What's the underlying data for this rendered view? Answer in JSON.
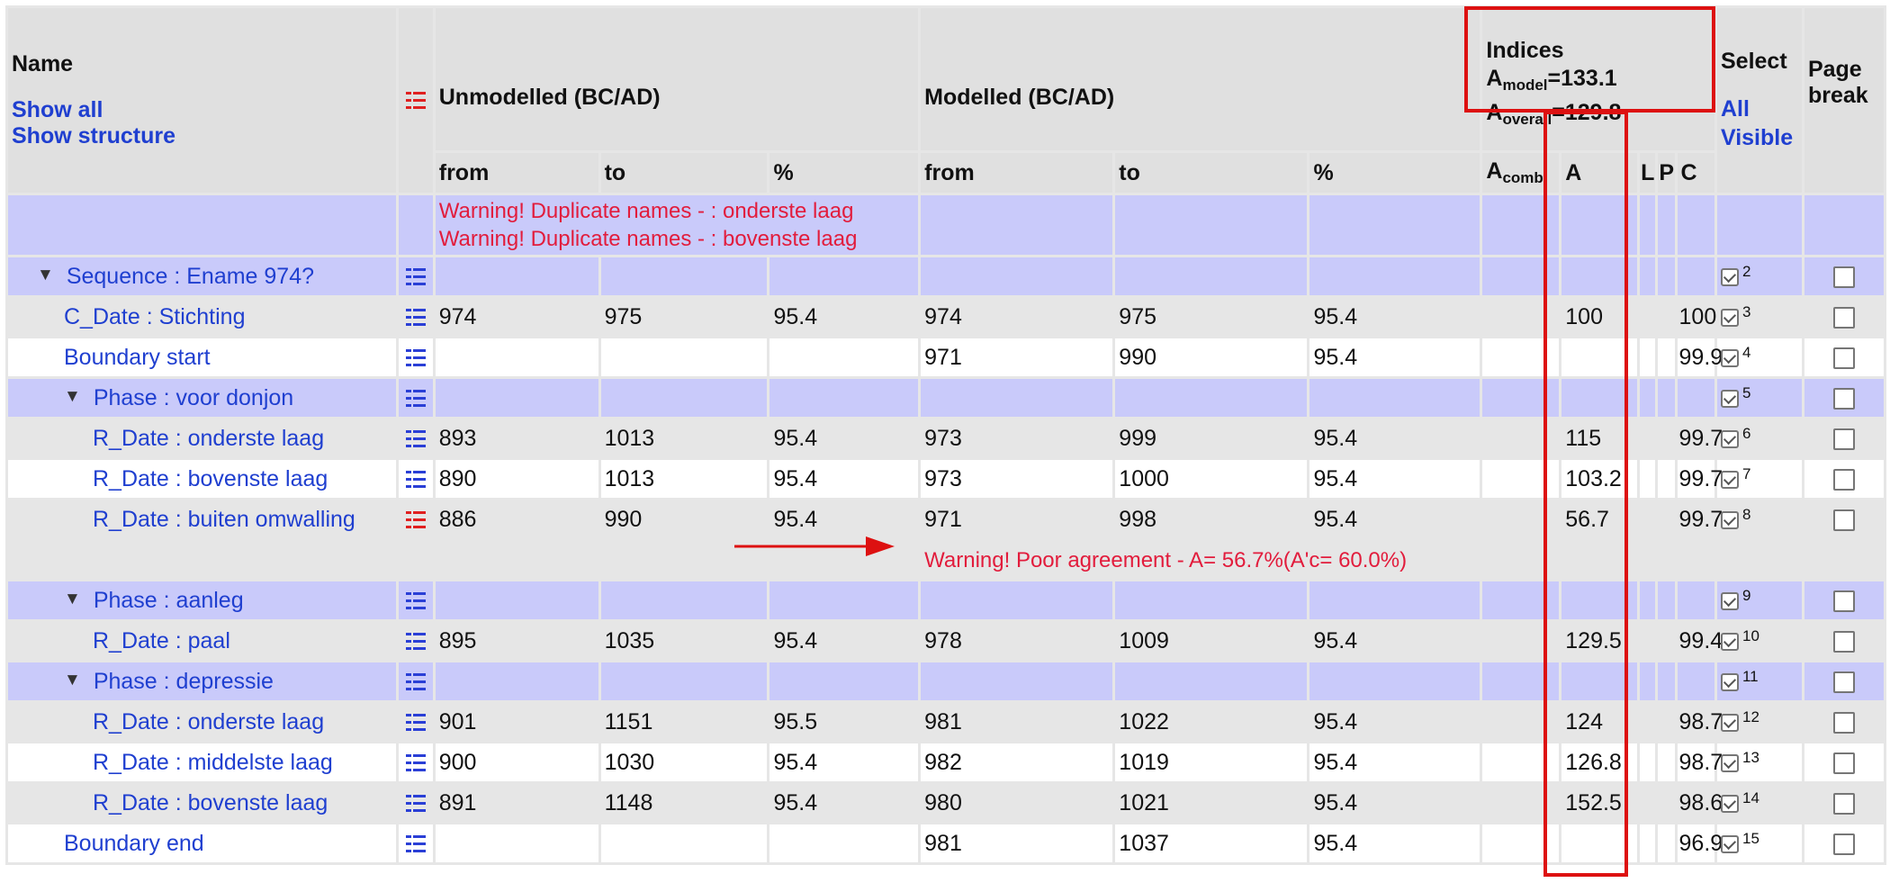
{
  "header": {
    "name": "Name",
    "show_all": "Show all",
    "show_structure": "Show structure",
    "unmodelled": "Unmodelled (BC/AD)",
    "modelled": "Modelled (BC/AD)",
    "indices": "Indices",
    "amodel_a": "A",
    "amodel_sub": "model",
    "amodel_val": "=133.1",
    "aoverall_a": "A",
    "aoverall_sub": "overall",
    "aoverall_val": "=129.8",
    "select": "Select",
    "all_visible": "All Visible",
    "page_break": "Page break",
    "from": "from",
    "to": "to",
    "pct": "%",
    "acomb_a": "A",
    "acomb_sub": "comb",
    "col_a": "A",
    "col_l": "L",
    "col_p": "P",
    "col_c": "C"
  },
  "warnings_top": [
    "Warning! Duplicate names - : onderste laag",
    "Warning! Duplicate names - : bovenste laag"
  ],
  "rows": [
    {
      "name": "Sequence : Ename 974?",
      "u_from": "",
      "u_to": "",
      "u_pct": "",
      "m_from": "",
      "m_to": "",
      "m_pct": "",
      "a": "",
      "c": "",
      "sel": "2"
    },
    {
      "name": "C_Date : Stichting",
      "u_from": "974",
      "u_to": "975",
      "u_pct": "95.4",
      "m_from": "974",
      "m_to": "975",
      "m_pct": "95.4",
      "a": "100",
      "c": "100",
      "sel": "3"
    },
    {
      "name": "Boundary start",
      "u_from": "",
      "u_to": "",
      "u_pct": "",
      "m_from": "971",
      "m_to": "990",
      "m_pct": "95.4",
      "a": "",
      "c": "99.9",
      "sel": "4"
    },
    {
      "name": "Phase : voor donjon",
      "u_from": "",
      "u_to": "",
      "u_pct": "",
      "m_from": "",
      "m_to": "",
      "m_pct": "",
      "a": "",
      "c": "",
      "sel": "5"
    },
    {
      "name": "R_Date : onderste laag",
      "u_from": "893",
      "u_to": "1013",
      "u_pct": "95.4",
      "m_from": "973",
      "m_to": "999",
      "m_pct": "95.4",
      "a": "115",
      "c": "99.7",
      "sel": "6"
    },
    {
      "name": "R_Date : bovenste laag",
      "u_from": "890",
      "u_to": "1013",
      "u_pct": "95.4",
      "m_from": "973",
      "m_to": "1000",
      "m_pct": "95.4",
      "a": "103.2",
      "c": "99.7",
      "sel": "7"
    },
    {
      "name": "R_Date : buiten omwalling",
      "u_from": "886",
      "u_to": "990",
      "u_pct": "95.4",
      "m_from": "971",
      "m_to": "998",
      "m_pct": "95.4",
      "a": "56.7",
      "c": "99.7",
      "sel": "8"
    },
    {
      "warning": "Warning! Poor agreement - A= 56.7%(A'c= 60.0%)"
    },
    {
      "name": "Phase : aanleg",
      "u_from": "",
      "u_to": "",
      "u_pct": "",
      "m_from": "",
      "m_to": "",
      "m_pct": "",
      "a": "",
      "c": "",
      "sel": "9"
    },
    {
      "name": "R_Date : paal",
      "u_from": "895",
      "u_to": "1035",
      "u_pct": "95.4",
      "m_from": "978",
      "m_to": "1009",
      "m_pct": "95.4",
      "a": "129.5",
      "c": "99.4",
      "sel": "10"
    },
    {
      "name": "Phase : depressie",
      "u_from": "",
      "u_to": "",
      "u_pct": "",
      "m_from": "",
      "m_to": "",
      "m_pct": "",
      "a": "",
      "c": "",
      "sel": "11"
    },
    {
      "name": "R_Date : onderste laag",
      "u_from": "901",
      "u_to": "1151",
      "u_pct": "95.5",
      "m_from": "981",
      "m_to": "1022",
      "m_pct": "95.4",
      "a": "124",
      "c": "98.7",
      "sel": "12"
    },
    {
      "name": "R_Date : middelste laag",
      "u_from": "900",
      "u_to": "1030",
      "u_pct": "95.4",
      "m_from": "982",
      "m_to": "1019",
      "m_pct": "95.4",
      "a": "126.8",
      "c": "98.7",
      "sel": "13"
    },
    {
      "name": "R_Date : bovenste laag",
      "u_from": "891",
      "u_to": "1148",
      "u_pct": "95.4",
      "m_from": "980",
      "m_to": "1021",
      "m_pct": "95.4",
      "a": "152.5",
      "c": "98.6",
      "sel": "14"
    },
    {
      "name": "Boundary end",
      "u_from": "",
      "u_to": "",
      "u_pct": "",
      "m_from": "981",
      "m_to": "1037",
      "m_pct": "95.4",
      "a": "",
      "c": "96.9",
      "sel": "15"
    }
  ],
  "icons": {
    "list_icon": "list-icon",
    "expand_triangle": "triangle-down-icon",
    "annotation_arrow": "arrow-right-icon",
    "checkbox": "checkbox-icon"
  },
  "colors": {
    "link": "#1f3fd0",
    "warning": "#e21c3c",
    "highlight_box": "#d11111",
    "row_lavender": "#c9cafa",
    "row_gray": "#e6e6e6",
    "icon_blue": "#2a3fd6",
    "icon_red": "#e02020"
  }
}
